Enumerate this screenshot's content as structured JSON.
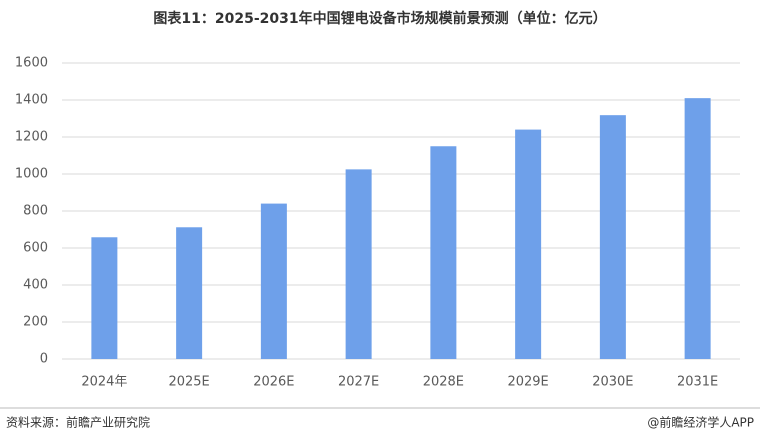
{
  "chart_data": {
    "type": "bar",
    "title": "图表11：2025-2031年中国锂电设备市场规模前景预测（单位：亿元）",
    "categories": [
      "2024年",
      "2025E",
      "2026E",
      "2027E",
      "2028E",
      "2029E",
      "2030E",
      "2031E"
    ],
    "values": [
      658,
      712,
      840,
      1025,
      1150,
      1240,
      1318,
      1410
    ],
    "color": "#6ea0ea",
    "ylim": [
      0,
      1600
    ],
    "yticks": [
      0,
      200,
      400,
      600,
      800,
      1000,
      1200,
      1400,
      1600
    ],
    "grid": true,
    "source": "资料来源：前瞻产业研究院",
    "credit": "@前瞻经济学人APP"
  }
}
